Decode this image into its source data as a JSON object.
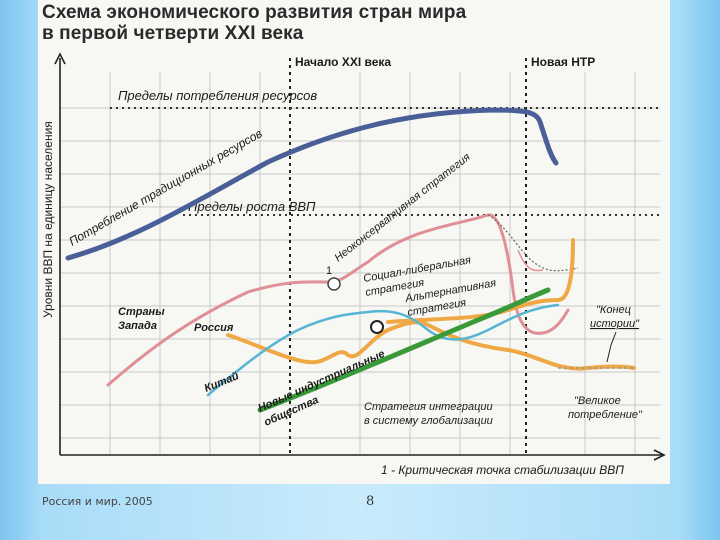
{
  "title": {
    "line1": "Схема экономического развития стран мира",
    "line2": "в первой четверти XXI века"
  },
  "y_axis_label": "Уровни ВВП на единицу населения",
  "time_markers": {
    "start": "Начало XXI века",
    "new_ntr": "Новая НТР"
  },
  "limits": {
    "consumption": "Пределы потребления ресурсов",
    "gdp_growth": "Пределы роста ВВП"
  },
  "curves": {
    "traditional": "Потребление традиционных ресурсов",
    "neoconservative": "Неоконсервативная стратегия",
    "social_liberal_1": "Социал-либеральная",
    "social_liberal_2": "стратегия",
    "alternative_1": "Альтернативная",
    "alternative_2": "стратегия",
    "integration_1": "Стратегия интеграции",
    "integration_2": "в систему глобализации"
  },
  "regions": {
    "west_1": "Страны",
    "west_2": "Запада",
    "russia": "Россия",
    "china": "Китай",
    "new_industrial_1": "Новые индустриальные",
    "new_industrial_2": "общества"
  },
  "annotations": {
    "point_number": "1",
    "end_of_history_1": "\"Конец",
    "end_of_history_2": "истории\"",
    "great_consumption_1": "\"Великое",
    "great_consumption_2": "потребление\"",
    "footnote": "1 - Критическая точка стабилизации ВВП"
  },
  "footer": {
    "source": "Россия и мир. 2005",
    "page": "8"
  },
  "colors": {
    "traditional": "#4a5f97",
    "west": "#df8f95",
    "russia": "#f0a845",
    "china": "#55b5d2",
    "new_industrial": "#3a9a3a"
  }
}
